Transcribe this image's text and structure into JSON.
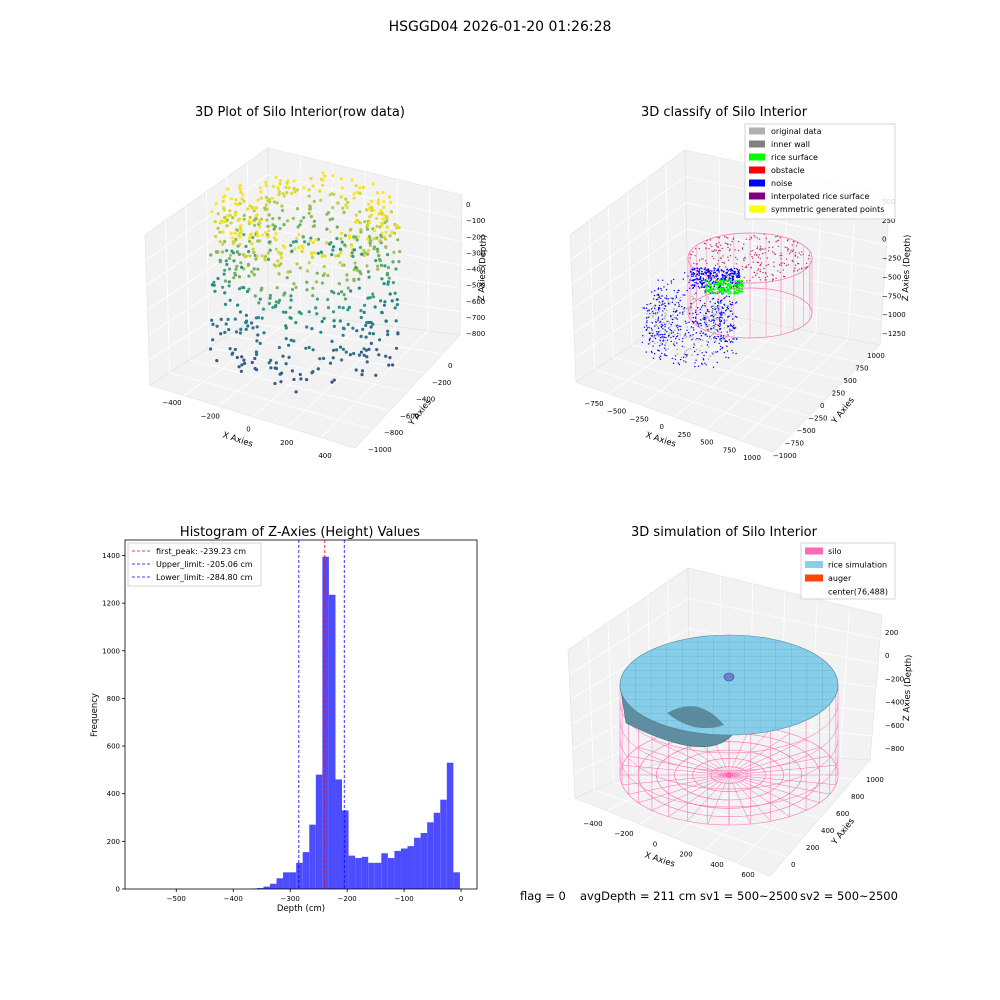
{
  "suptitle": "HSGGD04 2026-01-20 01:26:28",
  "footer": {
    "flag": "flag = 0",
    "avg_depth": "avgDepth = 211 cm",
    "sv1": "sv1 = 500~2500",
    "sv2": "sv2 = 500~2500"
  },
  "colors": {
    "hist_bar": "#4d4dff",
    "first_peak": "#ff0000",
    "limit": "#0000ff",
    "silo": "#ff69b4",
    "rice_simulation": "#87ceeb",
    "auger": "#ff4500",
    "viridis_low": "#3b528b",
    "viridis_mid": "#21918c",
    "viridis_high": "#fde725"
  },
  "chart_data": [
    {
      "type": "scatter",
      "title": "3D Plot of Silo Interior(row data)",
      "xlabel": "X Axies",
      "ylabel": "Y Axies",
      "zlabel": "Z Axies (Depth)",
      "xticks": [
        "−400",
        "−200",
        "0",
        "200",
        "400"
      ],
      "yticks": [
        "−1000",
        "−800",
        "−600",
        "−400",
        "−200",
        "0"
      ],
      "zticks": [
        "−800",
        "−700",
        "−600",
        "−500",
        "−400",
        "−300",
        "−200",
        "−100",
        "0"
      ],
      "zlim": [
        -850,
        20
      ],
      "colormap": "viridis"
    },
    {
      "type": "scatter",
      "title": "3D classify of Silo Interior",
      "xlabel": "X Axies",
      "ylabel": "Y Axies",
      "zlabel": "Z Axies (Depth)",
      "xticks": [
        "−750",
        "−500",
        "−250",
        "0",
        "250",
        "500",
        "750",
        "1000"
      ],
      "yticks": [
        "−1000",
        "−750",
        "−500",
        "−250",
        "0",
        "250",
        "500",
        "750",
        "1000"
      ],
      "zticks": [
        "−1250",
        "−1000",
        "−750",
        "−500",
        "−250",
        "0",
        "250",
        "500"
      ],
      "legend": [
        {
          "label": "original data",
          "color": "#b0b0b0"
        },
        {
          "label": "inner wall",
          "color": "#808080"
        },
        {
          "label": "rice surface",
          "color": "#00ff00"
        },
        {
          "label": "obstacle",
          "color": "#ff0000"
        },
        {
          "label": "noise",
          "color": "#0000ff"
        },
        {
          "label": "interpolated rice surface",
          "color": "#800080"
        },
        {
          "label": "symmetric generated points",
          "color": "#ffff00"
        }
      ],
      "legend_placement": "top-right"
    },
    {
      "type": "bar",
      "title": "Histogram of Z-Axies (Height) Values",
      "xlabel": "Depth (cm)",
      "ylabel": "Frequency",
      "xlim": [
        -590,
        28
      ],
      "ylim": [
        0,
        1465
      ],
      "xticks": [
        -500,
        -400,
        -300,
        -200,
        -100,
        0
      ],
      "xtick_labels": [
        "−500",
        "−400",
        "−300",
        "−200",
        "−100",
        "0"
      ],
      "yticks": [
        0,
        200,
        400,
        600,
        800,
        1000,
        1200,
        1400
      ],
      "bin_width": 11.5,
      "bins": [
        {
          "x0": -370,
          "value": 2
        },
        {
          "x0": -358.5,
          "value": 4
        },
        {
          "x0": -347,
          "value": 10
        },
        {
          "x0": -335.5,
          "value": 22
        },
        {
          "x0": -324,
          "value": 45
        },
        {
          "x0": -312.5,
          "value": 70
        },
        {
          "x0": -301,
          "value": 70
        },
        {
          "x0": -289.5,
          "value": 110
        },
        {
          "x0": -278,
          "value": 155
        },
        {
          "x0": -266.5,
          "value": 270
        },
        {
          "x0": -255,
          "value": 480
        },
        {
          "x0": -243.5,
          "value": 1395
        },
        {
          "x0": -232,
          "value": 1235
        },
        {
          "x0": -220.5,
          "value": 460
        },
        {
          "x0": -209,
          "value": 330
        },
        {
          "x0": -197.5,
          "value": 140
        },
        {
          "x0": -186,
          "value": 130
        },
        {
          "x0": -174.5,
          "value": 135
        },
        {
          "x0": -163,
          "value": 110
        },
        {
          "x0": -151.5,
          "value": 110
        },
        {
          "x0": -140,
          "value": 150
        },
        {
          "x0": -128.5,
          "value": 130
        },
        {
          "x0": -117,
          "value": 160
        },
        {
          "x0": -105.5,
          "value": 170
        },
        {
          "x0": -94,
          "value": 180
        },
        {
          "x0": -82.5,
          "value": 215
        },
        {
          "x0": -71,
          "value": 235
        },
        {
          "x0": -59.5,
          "value": 280
        },
        {
          "x0": -48,
          "value": 320
        },
        {
          "x0": -36.5,
          "value": 375
        },
        {
          "x0": -25,
          "value": 530
        },
        {
          "x0": -13.5,
          "value": 70
        }
      ],
      "lines": [
        {
          "label": "first_peak: -239.23 cm",
          "x": -239.23,
          "color": "#ff0000"
        },
        {
          "label": "Upper_limit: -205.06 cm",
          "x": -205.06,
          "color": "#0000ff"
        },
        {
          "label": "Lower_limit: -284.80 cm",
          "x": -284.8,
          "color": "#0000ff"
        }
      ],
      "legend_placement": "top-left"
    },
    {
      "type": "area",
      "title": "3D simulation of Silo Interior",
      "xlabel": "X Axies",
      "ylabel": "Y Axies",
      "zlabel": "Z Axies (Depth)",
      "xticks": [
        "−400",
        "−200",
        "0",
        "200",
        "400",
        "600"
      ],
      "yticks": [
        "0",
        "200",
        "400",
        "600",
        "800",
        "1000"
      ],
      "zticks": [
        "−800",
        "−600",
        "−400",
        "−200",
        "0",
        "200"
      ],
      "legend": [
        {
          "label": "silo",
          "color": "#ff69b4"
        },
        {
          "label": "rice simulation",
          "color": "#87ceeb"
        },
        {
          "label": "auger",
          "color": "#ff4500"
        },
        {
          "label": "center(76,488)",
          "color": ""
        }
      ],
      "legend_placement": "top-right"
    }
  ]
}
